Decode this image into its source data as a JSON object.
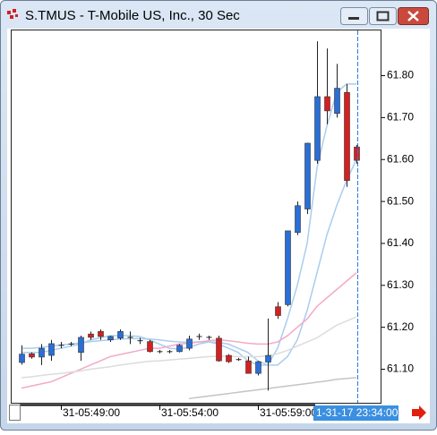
{
  "chart_data": {
    "type": "candlestick",
    "title": "S.TMUS - T-Mobile US, Inc., 30 Sec",
    "categories": [
      null,
      null,
      null,
      null,
      "31-05:49:00",
      null,
      null,
      null,
      null,
      null,
      null,
      null,
      null,
      null,
      "31-05:54:00",
      null,
      null,
      null,
      null,
      null,
      null,
      null,
      null,
      null,
      "31-05:59:00",
      null,
      null,
      null,
      null,
      null,
      null,
      null,
      null,
      null,
      null
    ],
    "cursor_label": "1-31-17 23:34:00",
    "open": [
      61.116,
      61.137,
      61.129,
      61.133,
      61.157,
      61.16,
      61.14,
      61.184,
      61.19,
      61.17,
      61.174,
      61.176,
      61.168,
      61.166,
      61.142,
      61.142,
      61.142,
      61.15,
      61.178,
      61.176,
      61.174,
      61.133,
      61.123,
      61.12,
      61.09,
      61.117,
      61.249,
      61.254,
      61.426,
      61.482,
      61.598,
      61.75,
      61.71,
      61.76,
      61.63
    ],
    "high": [
      61.157,
      61.14,
      61.16,
      61.17,
      61.165,
      61.165,
      61.18,
      61.19,
      61.195,
      61.18,
      61.195,
      61.19,
      61.175,
      61.17,
      61.146,
      61.146,
      61.16,
      61.18,
      61.185,
      61.18,
      61.18,
      61.136,
      61.127,
      61.13,
      61.12,
      61.221,
      61.26,
      61.43,
      61.5,
      61.64,
      61.882,
      61.865,
      61.828,
      61.78,
      61.635
    ],
    "low": [
      61.111,
      61.125,
      61.11,
      61.12,
      61.15,
      61.155,
      61.12,
      61.17,
      61.17,
      61.165,
      61.17,
      61.16,
      61.16,
      61.14,
      61.138,
      61.138,
      61.14,
      61.145,
      61.17,
      61.17,
      61.118,
      61.115,
      61.12,
      61.09,
      61.085,
      61.049,
      61.22,
      61.25,
      61.42,
      61.47,
      61.59,
      61.684,
      61.7,
      61.535,
      61.59
    ],
    "close": [
      61.136,
      61.129,
      61.15,
      61.161,
      61.157,
      61.16,
      61.176,
      61.176,
      61.178,
      61.178,
      61.19,
      61.176,
      61.168,
      61.142,
      61.142,
      61.142,
      61.157,
      61.172,
      61.178,
      61.176,
      61.12,
      61.118,
      61.123,
      61.09,
      61.118,
      61.133,
      61.228,
      61.43,
      61.49,
      61.639,
      61.75,
      61.716,
      61.77,
      61.55,
      61.598
    ],
    "up_color": "#2a6fd6",
    "down_color": "#d42020",
    "overlays": [
      {
        "color": "#a9cdee",
        "values": [
          61.14,
          61.14,
          61.14,
          61.145,
          61.15,
          61.155,
          61.16,
          61.17,
          61.175,
          61.18,
          61.18,
          61.18,
          61.178,
          61.17,
          61.16,
          61.15,
          61.148,
          61.152,
          61.16,
          61.165,
          61.16,
          61.15,
          61.14,
          61.12,
          61.11,
          61.11,
          61.15,
          61.22,
          61.3,
          61.4,
          61.58,
          61.68,
          61.76,
          61.78,
          61.78
        ]
      },
      {
        "color": "#a9cdee",
        "values": [
          61.15,
          61.15,
          61.152,
          61.155,
          61.158,
          61.16,
          61.163,
          61.166,
          61.168,
          61.17,
          61.172,
          61.173,
          61.173,
          61.172,
          61.17,
          61.167,
          61.165,
          61.164,
          61.165,
          61.165,
          61.164,
          61.16,
          61.15,
          61.14,
          61.12,
          61.11,
          61.11,
          61.13,
          61.17,
          61.24,
          61.33,
          61.42,
          61.49,
          61.55,
          61.6
        ]
      },
      {
        "color": "#f4a8c8",
        "values": [
          61.055,
          61.06,
          61.065,
          61.07,
          61.08,
          61.09,
          61.1,
          61.11,
          61.12,
          61.13,
          61.135,
          61.14,
          61.145,
          61.15,
          61.15,
          61.155,
          61.16,
          61.162,
          61.165,
          61.168,
          61.17,
          61.168,
          61.165,
          61.162,
          61.16,
          61.16,
          61.165,
          61.18,
          61.2,
          61.22,
          61.25,
          61.27,
          61.29,
          61.31,
          61.33
        ]
      },
      {
        "color": "#dcdcdc",
        "values": [
          61.08,
          61.082,
          61.085,
          61.088,
          61.09,
          61.093,
          61.096,
          61.1,
          61.103,
          61.106,
          61.11,
          61.113,
          61.116,
          61.119,
          61.12,
          61.122,
          61.124,
          61.126,
          61.128,
          61.13,
          61.131,
          61.131,
          61.13,
          61.13,
          61.13,
          61.132,
          61.137,
          61.145,
          61.155,
          61.165,
          61.175,
          61.19,
          61.205,
          61.215,
          61.225
        ]
      },
      {
        "color": "#c4c4c4",
        "values": [
          null,
          null,
          null,
          null,
          null,
          null,
          null,
          null,
          null,
          null,
          null,
          null,
          null,
          null,
          null,
          null,
          null,
          61.03,
          61.033,
          61.036,
          61.039,
          61.042,
          61.045,
          61.048,
          61.051,
          61.054,
          61.057,
          61.06,
          61.063,
          61.066,
          61.069,
          61.072,
          61.076,
          61.078,
          61.08
        ]
      }
    ],
    "ylim": [
      61.02,
      61.91
    ],
    "yticks": [
      {
        "value": 61.1,
        "label": "61.10"
      },
      {
        "value": 61.2,
        "label": "61.20"
      },
      {
        "value": 61.3,
        "label": "61.30"
      },
      {
        "value": 61.4,
        "label": "61.40"
      },
      {
        "value": 61.5,
        "label": "61.50"
      },
      {
        "value": 61.6,
        "label": "61.60"
      },
      {
        "value": 61.7,
        "label": "61.70"
      },
      {
        "value": 61.8,
        "label": "61.80"
      }
    ]
  }
}
